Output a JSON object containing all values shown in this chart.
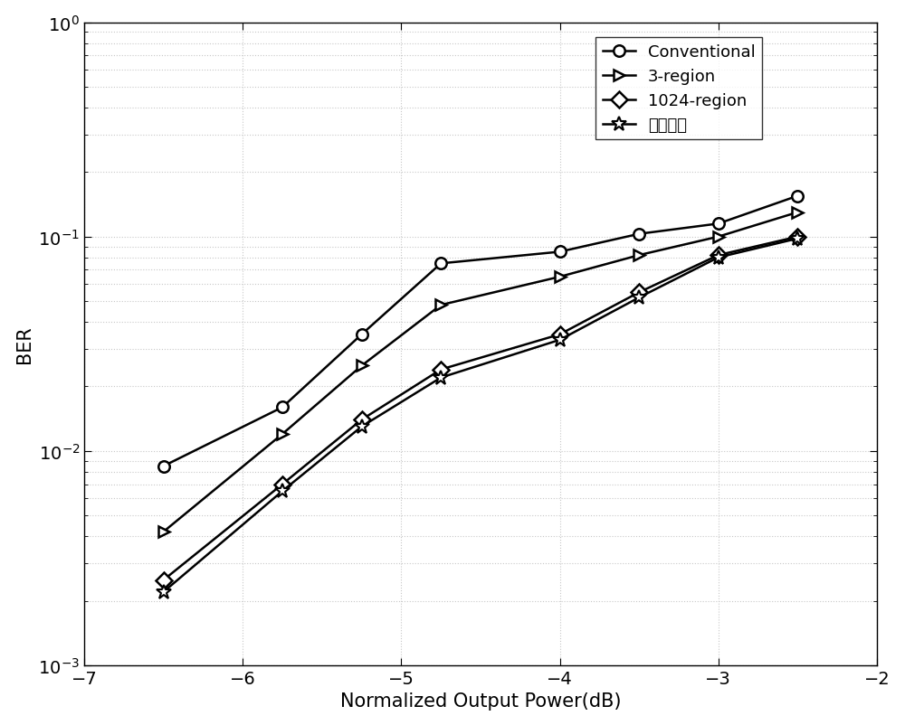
{
  "x": [
    -6.5,
    -5.75,
    -5.25,
    -4.75,
    -4.0,
    -3.5,
    -3.0,
    -2.5
  ],
  "conventional": [
    0.0085,
    0.016,
    0.035,
    0.075,
    0.085,
    0.103,
    0.115,
    0.155
  ],
  "region3": [
    0.0042,
    0.012,
    0.025,
    0.048,
    0.065,
    0.082,
    0.1,
    0.13
  ],
  "region1024": [
    0.0025,
    0.007,
    0.014,
    0.024,
    0.035,
    0.055,
    0.082,
    0.1
  ],
  "neural": [
    0.0022,
    0.0065,
    0.013,
    0.022,
    0.033,
    0.052,
    0.08,
    0.098
  ],
  "line_color": "#000000",
  "marker_conventional": "o",
  "marker_region3": ">",
  "marker_region1024": "D",
  "marker_neural": "*",
  "legend_labels": [
    "Conventional",
    "3-region",
    "1024-region",
    "神经网络"
  ],
  "xlabel": "Normalized Output Power(dB)",
  "ylabel": "BER",
  "xlim": [
    -7,
    -2
  ],
  "ylim_log": [
    -3,
    0
  ],
  "grid_color": "#c8c8c8",
  "background_color": "#ffffff",
  "axis_fontsize": 15,
  "legend_fontsize": 13,
  "tick_fontsize": 14,
  "linewidth": 1.8,
  "markersize": 9,
  "markersize_star": 12
}
